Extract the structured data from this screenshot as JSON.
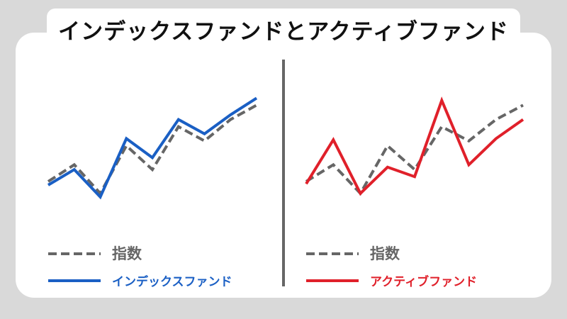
{
  "title": "インデックスファンドとアクティブファンド",
  "colors": {
    "index": "#666666",
    "index_fund": "#1a5fc4",
    "active_fund": "#e0202a",
    "divider": "#666666",
    "background": "#d9d9d9",
    "card": "#ffffff"
  },
  "chart_data": [
    {
      "type": "line",
      "title": "",
      "xlabel": "",
      "ylabel": "",
      "grid": false,
      "legend_position": "bottom-left",
      "x": [
        0,
        1,
        2,
        3,
        4,
        5,
        6,
        7,
        8
      ],
      "series": [
        {
          "name": "指数",
          "style": "dashed",
          "color": "#666666",
          "values": [
            28,
            42,
            18,
            58,
            38,
            74,
            62,
            80,
            92
          ]
        },
        {
          "name": "インデックスファンド",
          "style": "solid",
          "color": "#1a5fc4",
          "values": [
            25,
            38,
            15,
            64,
            48,
            80,
            68,
            84,
            98
          ]
        }
      ]
    },
    {
      "type": "line",
      "title": "",
      "xlabel": "",
      "ylabel": "",
      "grid": false,
      "legend_position": "bottom-left",
      "x": [
        0,
        1,
        2,
        3,
        4,
        5,
        6,
        7,
        8
      ],
      "series": [
        {
          "name": "指数",
          "style": "dashed",
          "color": "#666666",
          "values": [
            28,
            42,
            18,
            58,
            38,
            74,
            62,
            80,
            92
          ]
        },
        {
          "name": "アクティブファンド",
          "style": "solid",
          "color": "#e0202a",
          "values": [
            26,
            63,
            18,
            40,
            32,
            96,
            42,
            64,
            80
          ]
        }
      ]
    }
  ]
}
